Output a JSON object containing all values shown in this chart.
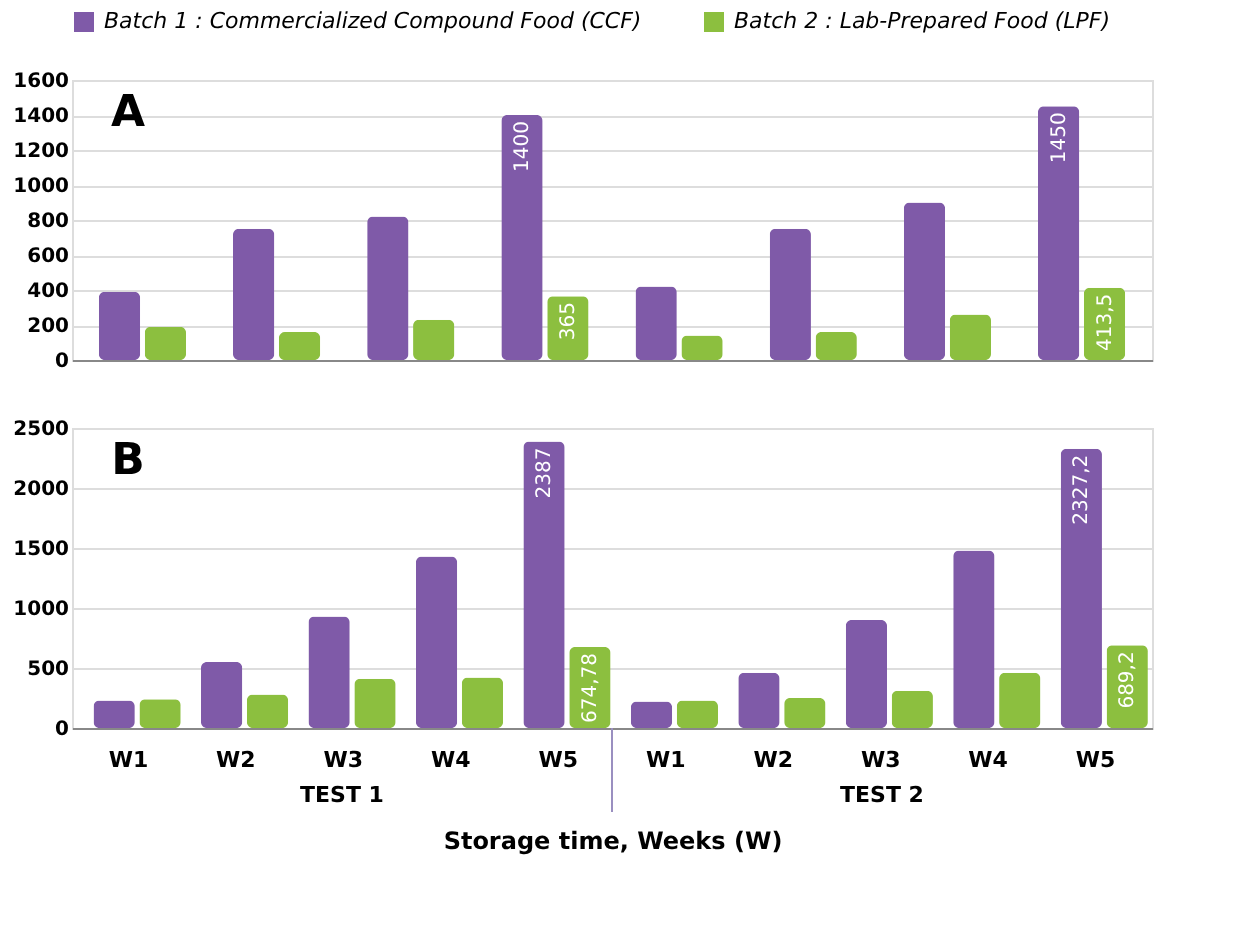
{
  "chart_data": [
    {
      "type": "bar",
      "categories": [
        null,
        null,
        null,
        null,
        null,
        null,
        null,
        null
      ],
      "ylim": [
        0,
        1600
      ],
      "yticks": [
        0,
        200,
        400,
        600,
        800,
        1000,
        1200,
        1400,
        1600
      ],
      "grid": "y",
      "legend": "top",
      "tick_labels": "y",
      "annotations": [
        "A"
      ],
      "series": [
        {
          "name": "Batch 1 : Commercialized Compound Food (CCF)",
          "color": "#7f5aa8",
          "values": [
            390,
            750,
            820,
            1400,
            420,
            750,
            900,
            1450
          ],
          "value_labels": [
            null,
            null,
            null,
            "1400",
            null,
            null,
            null,
            "1450"
          ]
        },
        {
          "name": "Batch 2 : Lab-Prepared Food (LPF)",
          "color": "#8cbf3f",
          "values": [
            190,
            160,
            230,
            365,
            140,
            160,
            260,
            413.5
          ],
          "value_labels": [
            null,
            null,
            null,
            "365",
            null,
            null,
            null,
            "413,5"
          ]
        }
      ]
    },
    {
      "type": "bar",
      "categories": [
        "W1",
        "W2",
        "W3",
        "W4",
        "W5",
        "W1",
        "W2",
        "W3",
        "W4",
        "W5"
      ],
      "xlabel": "Storage time, Weeks (W)",
      "ylim": [
        0,
        2500
      ],
      "yticks": [
        0,
        500,
        1000,
        1500,
        2000,
        2500
      ],
      "grid": "y",
      "legend": "top",
      "annotations": [
        "B",
        "TEST 1",
        "TEST 2"
      ],
      "series": [
        {
          "name": "Batch 1 : Commercialized Compound Food (CCF)",
          "color": "#7f5aa8",
          "values": [
            230,
            550,
            930,
            1430,
            2387,
            220,
            460,
            900,
            1480,
            2327.2
          ],
          "value_labels": [
            null,
            null,
            null,
            null,
            "2387",
            null,
            null,
            null,
            null,
            "2327,2"
          ]
        },
        {
          "name": "Batch 2 : Lab-Prepared Food (LPF)",
          "color": "#8cbf3f",
          "values": [
            240,
            280,
            410,
            420,
            674.78,
            230,
            250,
            310,
            460,
            689.2
          ],
          "value_labels": [
            null,
            null,
            null,
            null,
            "674,78",
            null,
            null,
            null,
            null,
            "689,2"
          ]
        }
      ]
    }
  ]
}
